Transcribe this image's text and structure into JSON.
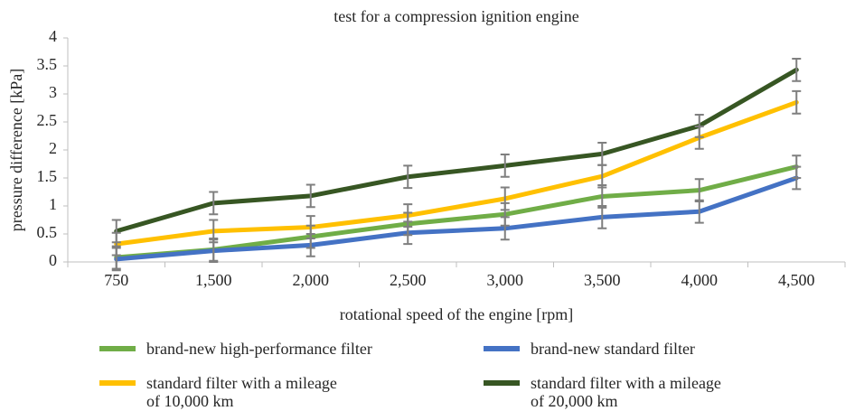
{
  "chart_data": {
    "type": "line",
    "title": "test for a compression ignition engine",
    "x_label": "rotational speed of the engine [rpm]",
    "y_label": "pressure difference [kPa]",
    "categories": [
      "750",
      "1,500",
      "2,000",
      "2,500",
      "3,000",
      "3,500",
      "4,000",
      "4,500"
    ],
    "ylim": [
      0,
      4
    ],
    "yticks": [
      0,
      0.5,
      1,
      1.5,
      2,
      2.5,
      3,
      3.5,
      4
    ],
    "grid": false,
    "legend": "bottom",
    "error_color": "#7f7f7f",
    "series": [
      {
        "name": "brand-new high-performance filter",
        "color": "#70ad47",
        "values": [
          0.08,
          0.22,
          0.45,
          0.68,
          0.85,
          1.17,
          1.28,
          1.7
        ],
        "errors": [
          0.2,
          0.2,
          0.2,
          0.2,
          0.2,
          0.2,
          0.2,
          0.2
        ]
      },
      {
        "name": "brand-new standard filter",
        "color": "#4472c4",
        "values": [
          0.05,
          0.2,
          0.3,
          0.52,
          0.6,
          0.8,
          0.9,
          1.5
        ],
        "errors": [
          0.2,
          0.2,
          0.2,
          0.2,
          0.2,
          0.2,
          0.2,
          0.2
        ]
      },
      {
        "name": "standard filter with a mileage\nof 10,000 km",
        "color": "#ffc000",
        "values": [
          0.32,
          0.55,
          0.62,
          0.83,
          1.13,
          1.53,
          2.22,
          2.85
        ],
        "errors": [
          0.2,
          0.2,
          0.2,
          0.2,
          0.2,
          0.2,
          0.2,
          0.2
        ]
      },
      {
        "name": "standard filter with a mileage\nof 20,000 km",
        "color": "#375623",
        "values": [
          0.55,
          1.05,
          1.18,
          1.52,
          1.72,
          1.93,
          2.43,
          3.43
        ],
        "errors": [
          0.2,
          0.2,
          0.2,
          0.2,
          0.2,
          0.2,
          0.2,
          0.2
        ]
      }
    ]
  }
}
